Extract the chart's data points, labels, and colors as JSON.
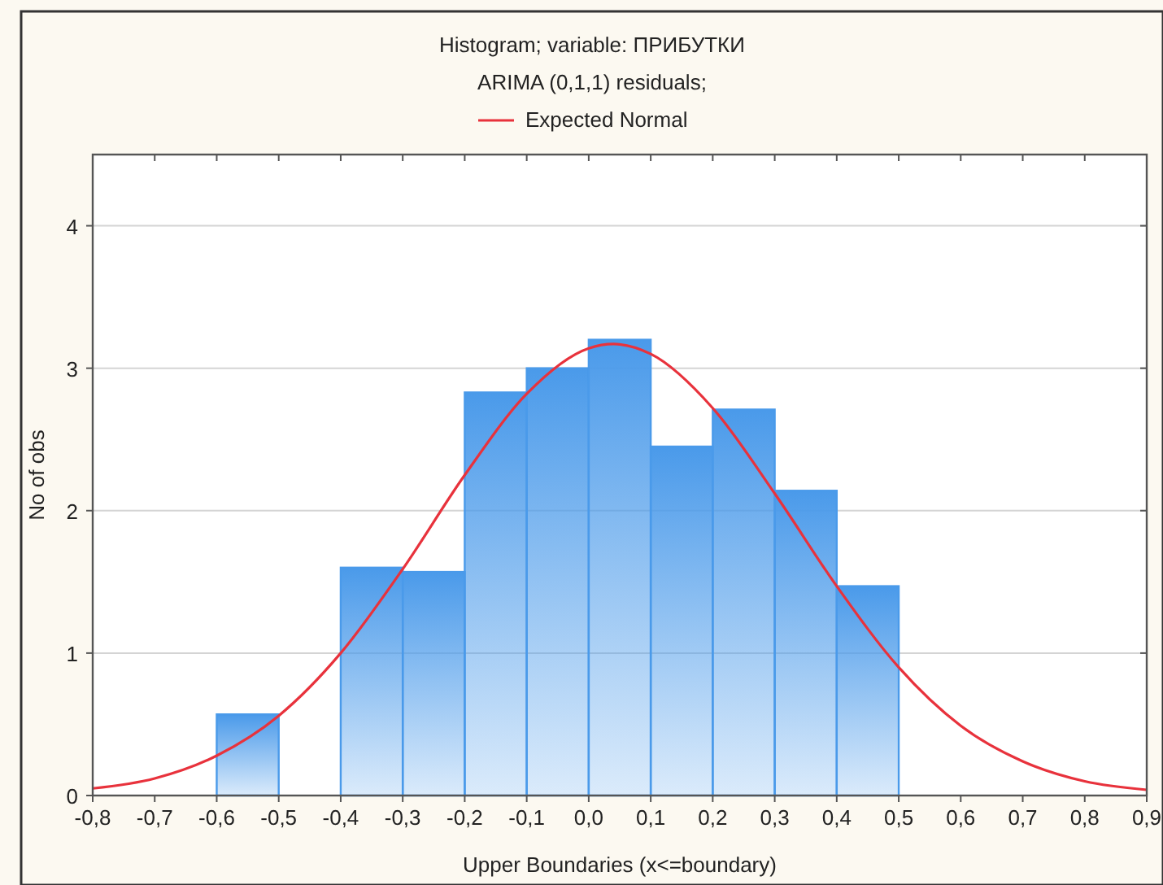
{
  "chart_data": {
    "type": "histogram",
    "title": "Histogram; variable: ПРИБУТКИ",
    "subtitle": "ARIMA (0,1,1) residuals;",
    "xlabel": "Upper Boundaries (x<=boundary)",
    "ylabel": "No of obs",
    "bins": [
      -0.6,
      -0.5,
      -0.4,
      -0.3,
      -0.2,
      -0.1,
      0.0,
      0.1,
      0.2,
      0.3,
      0.4,
      0.5
    ],
    "values": [
      0.57,
      0,
      1.6,
      1.57,
      2.83,
      3.0,
      3.2,
      2.45,
      2.71,
      2.14,
      1.47
    ],
    "color": "#4a9aea",
    "series": [
      {
        "type": "line",
        "name": "Expected Normal",
        "color": "#e8323c",
        "x": [
          -0.8,
          -0.7,
          -0.6,
          -0.5,
          -0.4,
          -0.3,
          -0.2,
          -0.1,
          0,
          0.04,
          0.1,
          0.2,
          0.3,
          0.4,
          0.5,
          0.6,
          0.7,
          0.8,
          0.9
        ],
        "values": [
          0.05,
          0.12,
          0.28,
          0.56,
          1.0,
          1.59,
          2.25,
          2.82,
          3.14,
          3.17,
          3.1,
          2.72,
          2.12,
          1.47,
          0.9,
          0.49,
          0.24,
          0.1,
          0.04
        ]
      }
    ],
    "xlim": [
      -0.8,
      0.9
    ],
    "ylim": [
      0,
      4.5
    ],
    "xticks": [
      {
        "value": -0.8,
        "label": "-0,8"
      },
      {
        "value": -0.7,
        "label": "-0,7"
      },
      {
        "value": -0.6,
        "label": "-0,6"
      },
      {
        "value": -0.5,
        "label": "-0,5"
      },
      {
        "value": -0.4,
        "label": "-0,4"
      },
      {
        "value": -0.3,
        "label": "-0,3"
      },
      {
        "value": -0.2,
        "label": "-0,2"
      },
      {
        "value": -0.1,
        "label": "-0,1"
      },
      {
        "value": 0,
        "label": "0,0"
      },
      {
        "value": 0.1,
        "label": "0,1"
      },
      {
        "value": 0.2,
        "label": "0,2"
      },
      {
        "value": 0.3,
        "label": "0,3"
      },
      {
        "value": 0.4,
        "label": "0,4"
      },
      {
        "value": 0.5,
        "label": "0,5"
      },
      {
        "value": 0.6,
        "label": "0,6"
      },
      {
        "value": 0.7,
        "label": "0,7"
      },
      {
        "value": 0.8,
        "label": "0,8"
      },
      {
        "value": 0.9,
        "label": "0,9"
      }
    ],
    "yticks": [
      0,
      1,
      2,
      3,
      4
    ],
    "grid": "y",
    "legend": "top",
    "marker": "none",
    "line_style": "solid"
  }
}
